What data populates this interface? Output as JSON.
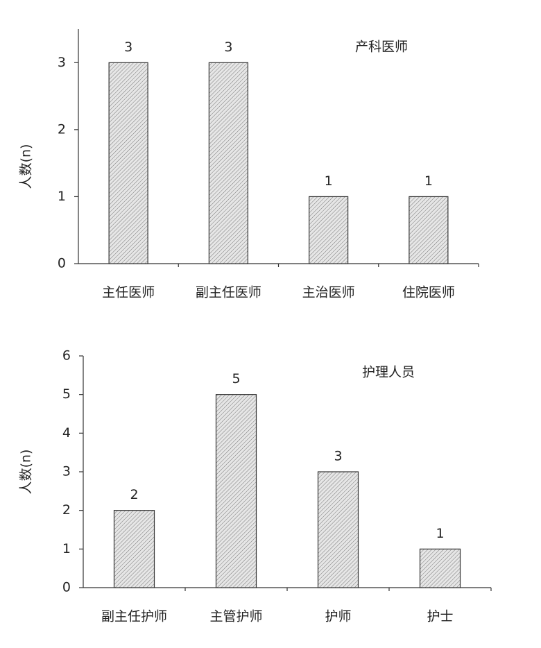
{
  "chart_data": [
    {
      "type": "bar",
      "title": "产科医师",
      "y_label": "人数(n)",
      "categories": [
        "主任医师",
        "副主任医师",
        "主治医师",
        "住院医师"
      ],
      "values": [
        3,
        3,
        1,
        1
      ],
      "color": "#e6e6e6",
      "ylim": [
        0,
        3.5
      ],
      "yticks": [
        0,
        1,
        2,
        3
      ]
    },
    {
      "type": "bar",
      "title": "护理人员",
      "y_label": "人数(n)",
      "categories": [
        "副主任护师",
        "主管护师",
        "护师",
        "护士"
      ],
      "values": [
        2,
        5,
        3,
        1
      ],
      "color": "#e6e6e6",
      "ylim": [
        0,
        6
      ],
      "yticks": [
        0,
        1,
        2,
        3,
        4,
        5,
        6
      ]
    }
  ]
}
